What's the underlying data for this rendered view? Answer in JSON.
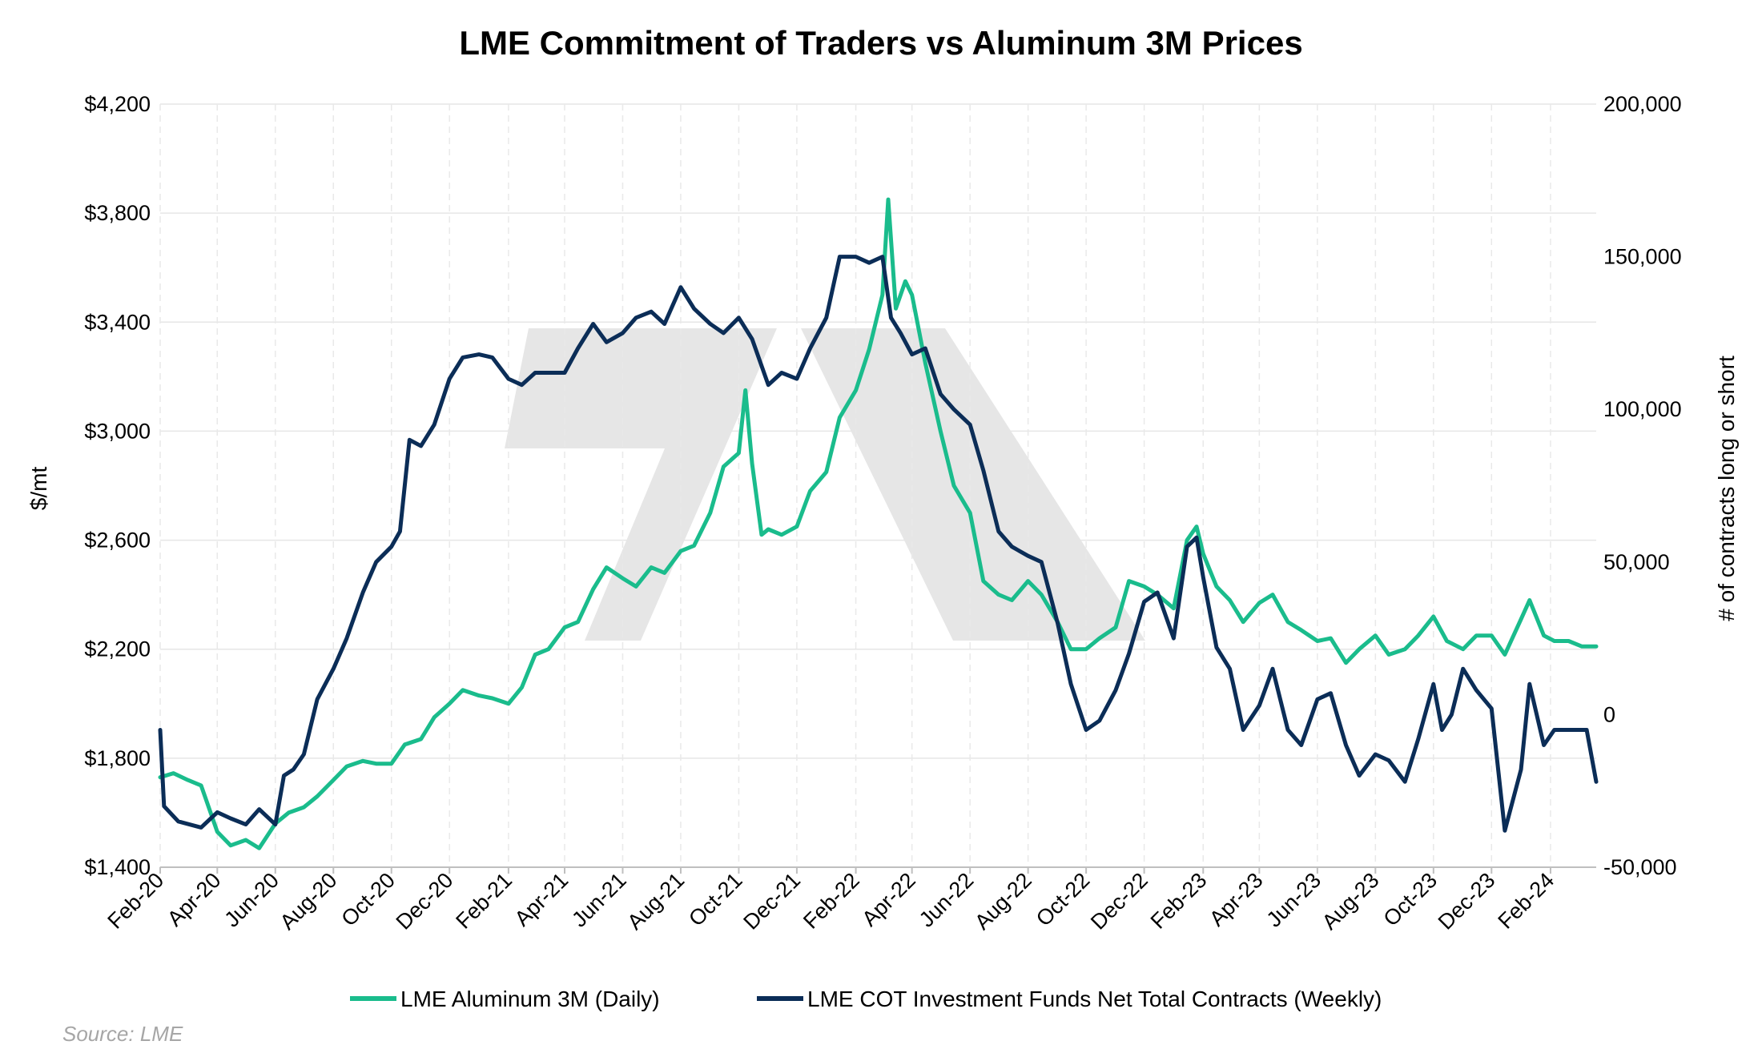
{
  "chart_data": {
    "type": "line",
    "title": "LME Commitment of Traders vs Aluminum 3M Prices",
    "source": "Source: LME",
    "left_axis": {
      "label": "$/mt",
      "range": [
        1400,
        4200
      ],
      "ticks": [
        "$1,400",
        "$1,800",
        "$2,200",
        "$2,600",
        "$3,000",
        "$3,400",
        "$3,800",
        "$4,200"
      ]
    },
    "right_axis": {
      "label": "# of contracts long or short",
      "range": [
        -50000,
        200000
      ],
      "ticks": [
        "-50,000",
        "0",
        "50,000",
        "100,000",
        "150,000",
        "200,000"
      ]
    },
    "x_axis": {
      "range": [
        "2020-02-01",
        "2024-03-20"
      ],
      "tick_labels": [
        "Feb-20",
        "Apr-20",
        "Jun-20",
        "Aug-20",
        "Oct-20",
        "Dec-20",
        "Feb-21",
        "Apr-21",
        "Jun-21",
        "Aug-21",
        "Oct-21",
        "Dec-21",
        "Feb-22",
        "Apr-22",
        "Jun-22",
        "Aug-22",
        "Oct-22",
        "Dec-22",
        "Feb-23",
        "Apr-23",
        "Jun-23",
        "Aug-23",
        "Oct-23",
        "Dec-23",
        "Feb-24"
      ]
    },
    "grid": "on",
    "legend_position": "bottom",
    "series": [
      {
        "name": "LME Aluminum 3M (Daily)",
        "axis": "left",
        "color": "#1abc8c",
        "points": [
          [
            "2020-02-01",
            1730
          ],
          [
            "2020-02-15",
            1745
          ],
          [
            "2020-03-01",
            1720
          ],
          [
            "2020-03-15",
            1700
          ],
          [
            "2020-04-01",
            1530
          ],
          [
            "2020-04-15",
            1480
          ],
          [
            "2020-05-01",
            1500
          ],
          [
            "2020-05-15",
            1470
          ],
          [
            "2020-06-01",
            1560
          ],
          [
            "2020-06-15",
            1600
          ],
          [
            "2020-07-01",
            1620
          ],
          [
            "2020-07-15",
            1660
          ],
          [
            "2020-08-01",
            1720
          ],
          [
            "2020-08-15",
            1770
          ],
          [
            "2020-09-01",
            1790
          ],
          [
            "2020-09-15",
            1780
          ],
          [
            "2020-10-01",
            1780
          ],
          [
            "2020-10-15",
            1850
          ],
          [
            "2020-11-01",
            1870
          ],
          [
            "2020-11-15",
            1950
          ],
          [
            "2020-12-01",
            2000
          ],
          [
            "2020-12-15",
            2050
          ],
          [
            "2021-01-01",
            2030
          ],
          [
            "2021-01-15",
            2020
          ],
          [
            "2021-02-01",
            2000
          ],
          [
            "2021-02-15",
            2060
          ],
          [
            "2021-03-01",
            2180
          ],
          [
            "2021-03-15",
            2200
          ],
          [
            "2021-04-01",
            2280
          ],
          [
            "2021-04-15",
            2300
          ],
          [
            "2021-05-01",
            2420
          ],
          [
            "2021-05-15",
            2500
          ],
          [
            "2021-06-01",
            2460
          ],
          [
            "2021-06-15",
            2430
          ],
          [
            "2021-07-01",
            2500
          ],
          [
            "2021-07-15",
            2480
          ],
          [
            "2021-08-01",
            2560
          ],
          [
            "2021-08-15",
            2580
          ],
          [
            "2021-09-01",
            2700
          ],
          [
            "2021-09-15",
            2870
          ],
          [
            "2021-10-01",
            2920
          ],
          [
            "2021-10-08",
            3150
          ],
          [
            "2021-10-15",
            2880
          ],
          [
            "2021-10-25",
            2620
          ],
          [
            "2021-11-01",
            2640
          ],
          [
            "2021-11-15",
            2620
          ],
          [
            "2021-12-01",
            2650
          ],
          [
            "2021-12-15",
            2780
          ],
          [
            "2022-01-01",
            2850
          ],
          [
            "2022-01-15",
            3050
          ],
          [
            "2022-02-01",
            3150
          ],
          [
            "2022-02-15",
            3300
          ],
          [
            "2022-03-01",
            3500
          ],
          [
            "2022-03-07",
            3850
          ],
          [
            "2022-03-15",
            3450
          ],
          [
            "2022-03-25",
            3550
          ],
          [
            "2022-04-01",
            3500
          ],
          [
            "2022-04-15",
            3250
          ],
          [
            "2022-05-01",
            3000
          ],
          [
            "2022-05-15",
            2800
          ],
          [
            "2022-06-01",
            2700
          ],
          [
            "2022-06-15",
            2450
          ],
          [
            "2022-07-01",
            2400
          ],
          [
            "2022-07-15",
            2380
          ],
          [
            "2022-08-01",
            2450
          ],
          [
            "2022-08-15",
            2400
          ],
          [
            "2022-09-01",
            2300
          ],
          [
            "2022-09-15",
            2200
          ],
          [
            "2022-10-01",
            2200
          ],
          [
            "2022-10-15",
            2240
          ],
          [
            "2022-11-01",
            2280
          ],
          [
            "2022-11-15",
            2450
          ],
          [
            "2022-12-01",
            2430
          ],
          [
            "2022-12-15",
            2400
          ],
          [
            "2023-01-01",
            2350
          ],
          [
            "2023-01-15",
            2600
          ],
          [
            "2023-01-25",
            2650
          ],
          [
            "2023-02-01",
            2550
          ],
          [
            "2023-02-15",
            2430
          ],
          [
            "2023-03-01",
            2380
          ],
          [
            "2023-03-15",
            2300
          ],
          [
            "2023-04-01",
            2370
          ],
          [
            "2023-04-15",
            2400
          ],
          [
            "2023-05-01",
            2300
          ],
          [
            "2023-05-15",
            2270
          ],
          [
            "2023-06-01",
            2230
          ],
          [
            "2023-06-15",
            2240
          ],
          [
            "2023-07-01",
            2150
          ],
          [
            "2023-07-15",
            2200
          ],
          [
            "2023-08-01",
            2250
          ],
          [
            "2023-08-15",
            2180
          ],
          [
            "2023-09-01",
            2200
          ],
          [
            "2023-09-15",
            2250
          ],
          [
            "2023-10-01",
            2320
          ],
          [
            "2023-10-15",
            2230
          ],
          [
            "2023-11-01",
            2200
          ],
          [
            "2023-11-15",
            2250
          ],
          [
            "2023-12-01",
            2250
          ],
          [
            "2023-12-15",
            2180
          ],
          [
            "2024-01-01",
            2310
          ],
          [
            "2024-01-10",
            2380
          ],
          [
            "2024-01-25",
            2250
          ],
          [
            "2024-02-05",
            2230
          ],
          [
            "2024-02-20",
            2230
          ],
          [
            "2024-03-05",
            2210
          ],
          [
            "2024-03-20",
            2210
          ]
        ]
      },
      {
        "name": "LME COT Investment Funds Net Total Contracts (Weekly)",
        "axis": "right",
        "color": "#0b2d57",
        "points": [
          [
            "2020-02-01",
            -5000
          ],
          [
            "2020-02-05",
            -30000
          ],
          [
            "2020-02-20",
            -35000
          ],
          [
            "2020-03-15",
            -37000
          ],
          [
            "2020-04-01",
            -32000
          ],
          [
            "2020-04-15",
            -34000
          ],
          [
            "2020-05-01",
            -36000
          ],
          [
            "2020-05-15",
            -31000
          ],
          [
            "2020-06-01",
            -36000
          ],
          [
            "2020-06-10",
            -20000
          ],
          [
            "2020-06-20",
            -18000
          ],
          [
            "2020-07-01",
            -13000
          ],
          [
            "2020-07-15",
            5000
          ],
          [
            "2020-08-01",
            15000
          ],
          [
            "2020-08-15",
            25000
          ],
          [
            "2020-09-01",
            40000
          ],
          [
            "2020-09-15",
            50000
          ],
          [
            "2020-10-01",
            55000
          ],
          [
            "2020-10-10",
            60000
          ],
          [
            "2020-10-20",
            90000
          ],
          [
            "2020-11-01",
            88000
          ],
          [
            "2020-11-15",
            95000
          ],
          [
            "2020-12-01",
            110000
          ],
          [
            "2020-12-15",
            117000
          ],
          [
            "2021-01-01",
            118000
          ],
          [
            "2021-01-15",
            117000
          ],
          [
            "2021-02-01",
            110000
          ],
          [
            "2021-02-15",
            108000
          ],
          [
            "2021-03-01",
            112000
          ],
          [
            "2021-03-15",
            112000
          ],
          [
            "2021-04-01",
            112000
          ],
          [
            "2021-04-15",
            120000
          ],
          [
            "2021-05-01",
            128000
          ],
          [
            "2021-05-15",
            122000
          ],
          [
            "2021-06-01",
            125000
          ],
          [
            "2021-06-15",
            130000
          ],
          [
            "2021-07-01",
            132000
          ],
          [
            "2021-07-15",
            128000
          ],
          [
            "2021-08-01",
            140000
          ],
          [
            "2021-08-15",
            133000
          ],
          [
            "2021-09-01",
            128000
          ],
          [
            "2021-09-15",
            125000
          ],
          [
            "2021-10-01",
            130000
          ],
          [
            "2021-10-15",
            123000
          ],
          [
            "2021-11-01",
            108000
          ],
          [
            "2021-11-15",
            112000
          ],
          [
            "2021-12-01",
            110000
          ],
          [
            "2021-12-15",
            120000
          ],
          [
            "2022-01-01",
            130000
          ],
          [
            "2022-01-15",
            150000
          ],
          [
            "2022-02-01",
            150000
          ],
          [
            "2022-02-15",
            148000
          ],
          [
            "2022-03-01",
            150000
          ],
          [
            "2022-03-10",
            130000
          ],
          [
            "2022-03-20",
            125000
          ],
          [
            "2022-04-01",
            118000
          ],
          [
            "2022-04-15",
            120000
          ],
          [
            "2022-05-01",
            105000
          ],
          [
            "2022-05-15",
            100000
          ],
          [
            "2022-06-01",
            95000
          ],
          [
            "2022-06-15",
            80000
          ],
          [
            "2022-07-01",
            60000
          ],
          [
            "2022-07-15",
            55000
          ],
          [
            "2022-08-01",
            52000
          ],
          [
            "2022-08-15",
            50000
          ],
          [
            "2022-09-01",
            30000
          ],
          [
            "2022-09-15",
            10000
          ],
          [
            "2022-10-01",
            -5000
          ],
          [
            "2022-10-15",
            -2000
          ],
          [
            "2022-11-01",
            8000
          ],
          [
            "2022-11-15",
            20000
          ],
          [
            "2022-12-01",
            37000
          ],
          [
            "2022-12-15",
            40000
          ],
          [
            "2023-01-01",
            25000
          ],
          [
            "2023-01-15",
            55000
          ],
          [
            "2023-01-25",
            58000
          ],
          [
            "2023-02-01",
            45000
          ],
          [
            "2023-02-15",
            22000
          ],
          [
            "2023-03-01",
            15000
          ],
          [
            "2023-03-15",
            -5000
          ],
          [
            "2023-04-01",
            3000
          ],
          [
            "2023-04-15",
            15000
          ],
          [
            "2023-05-01",
            -5000
          ],
          [
            "2023-05-15",
            -10000
          ],
          [
            "2023-06-01",
            5000
          ],
          [
            "2023-06-15",
            7000
          ],
          [
            "2023-07-01",
            -10000
          ],
          [
            "2023-07-15",
            -20000
          ],
          [
            "2023-08-01",
            -13000
          ],
          [
            "2023-08-15",
            -15000
          ],
          [
            "2023-09-01",
            -22000
          ],
          [
            "2023-09-15",
            -8000
          ],
          [
            "2023-10-01",
            10000
          ],
          [
            "2023-10-10",
            -5000
          ],
          [
            "2023-10-20",
            0
          ],
          [
            "2023-11-01",
            15000
          ],
          [
            "2023-11-15",
            8000
          ],
          [
            "2023-12-01",
            2000
          ],
          [
            "2023-12-15",
            -38000
          ],
          [
            "2024-01-01",
            -18000
          ],
          [
            "2024-01-10",
            10000
          ],
          [
            "2024-01-25",
            -10000
          ],
          [
            "2024-02-05",
            -5000
          ],
          [
            "2024-02-20",
            -5000
          ],
          [
            "2024-03-10",
            -5000
          ],
          [
            "2024-03-20",
            -22000
          ]
        ]
      }
    ]
  }
}
